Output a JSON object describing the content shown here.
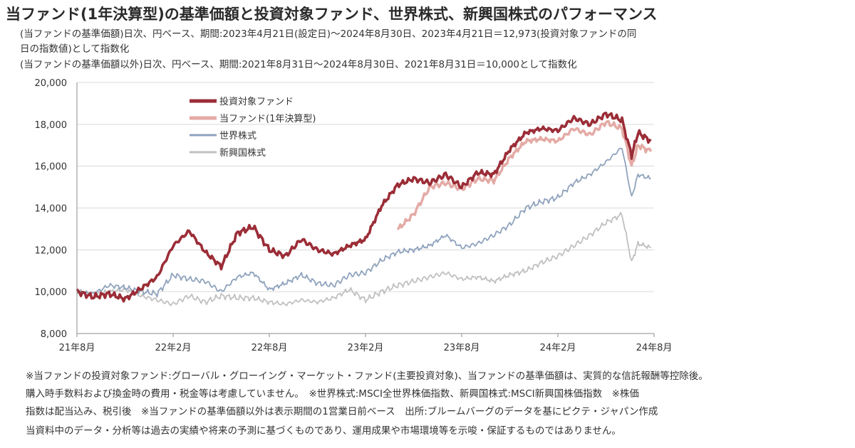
{
  "title": "当ファンド(1年決算型)の基準価額と投資対象ファンド、世界株式、新興国株式のパフォーマンス",
  "subtitle_lines": [
    "(当ファンドの基準価額)日次、円ベース、期間:2023年4月21日(設定日)～2024年8月30日、2023年4月21日＝12,973(投資対象ファンドの同",
    "日の指数値)として指数化",
    "(当ファンドの基準価額以外)日次、円ベース、期間:2021年8月31日～2024年8月30日、2021年8月31日＝10,000として指数化"
  ],
  "notes": [
    "※当ファンドの投資対象ファンド:グローバル・グローイング・マーケット・ファンド(主要投資対象)、当ファンドの基準価額は、実質的な信託報酬等控除後。",
    "購入時手数料および換金時の費用・税金等は考慮していません。　※世界株式:MSCI全世界株価指数、新興国株式:MSCI新興国株価指数　※株価",
    "指数は配当込み、税引後　※当ファンドの基準価額以外は表示期間の1営業日前ベース　出所:ブルームバーグのデータを基にピクテ・ジャパン作成",
    "当資料中のデータ・分析等は過去の実績や将来の予測に基づくものであり、運用成果や市場環境等を示唆・保証するものではありません。"
  ],
  "chart_data": {
    "type": "line",
    "x_ticks": [
      "21年8月",
      "22年2月",
      "22年8月",
      "23年2月",
      "23年8月",
      "24年2月",
      "24年8月"
    ],
    "y_ticks": [
      "8,000",
      "10,000",
      "12,000",
      "14,000",
      "16,000",
      "18,000",
      "20,000"
    ],
    "ylim": [
      8000,
      20000
    ],
    "x_range_months": [
      0,
      36
    ],
    "grid": "horizontal",
    "legend_position": "top-left",
    "series": [
      {
        "name": "投資対象ファンド",
        "color": "#9b2d37",
        "points": [
          [
            0,
            10000
          ],
          [
            1,
            9750
          ],
          [
            2,
            9900
          ],
          [
            3,
            9650
          ],
          [
            4,
            10150
          ],
          [
            5,
            10700
          ],
          [
            6,
            12200
          ],
          [
            7,
            12900
          ],
          [
            8,
            11900
          ],
          [
            9,
            11200
          ],
          [
            10,
            12800
          ],
          [
            11,
            13100
          ],
          [
            12,
            12000
          ],
          [
            13,
            11700
          ],
          [
            14,
            12500
          ],
          [
            15,
            12000
          ],
          [
            16,
            11800
          ],
          [
            17,
            12200
          ],
          [
            18,
            12500
          ],
          [
            19,
            14100
          ],
          [
            20,
            15100
          ],
          [
            21,
            15400
          ],
          [
            22,
            15200
          ],
          [
            23,
            15600
          ],
          [
            24,
            15000
          ],
          [
            25,
            15700
          ],
          [
            26,
            15600
          ],
          [
            27,
            16800
          ],
          [
            28,
            17600
          ],
          [
            29,
            17800
          ],
          [
            30,
            17700
          ],
          [
            31,
            18300
          ],
          [
            32,
            18000
          ],
          [
            33,
            18500
          ],
          [
            34,
            18200
          ],
          [
            34.6,
            16500
          ],
          [
            35,
            17600
          ],
          [
            35.8,
            17200
          ]
        ]
      },
      {
        "name": "当ファンド(1年決算型)",
        "color": "#e4aaa5",
        "points": [
          [
            20,
            12973
          ],
          [
            21,
            13700
          ],
          [
            22,
            15000
          ],
          [
            23,
            15200
          ],
          [
            24,
            14900
          ],
          [
            25,
            15400
          ],
          [
            26,
            15300
          ],
          [
            27,
            16400
          ],
          [
            28,
            17200
          ],
          [
            29,
            17300
          ],
          [
            30,
            17200
          ],
          [
            31,
            17800
          ],
          [
            32,
            17500
          ],
          [
            33,
            18100
          ],
          [
            34,
            17800
          ],
          [
            34.6,
            16000
          ],
          [
            35,
            17000
          ],
          [
            35.8,
            16700
          ]
        ]
      },
      {
        "name": "世界株式",
        "color": "#8fa3bd",
        "points": [
          [
            0,
            10000
          ],
          [
            1,
            9900
          ],
          [
            2,
            10300
          ],
          [
            3,
            10200
          ],
          [
            4,
            10000
          ],
          [
            5,
            9900
          ],
          [
            6,
            10800
          ],
          [
            7,
            10600
          ],
          [
            8,
            10500
          ],
          [
            9,
            10000
          ],
          [
            10,
            10700
          ],
          [
            11,
            10900
          ],
          [
            12,
            10100
          ],
          [
            13,
            10400
          ],
          [
            14,
            10800
          ],
          [
            15,
            10400
          ],
          [
            16,
            10300
          ],
          [
            17,
            10800
          ],
          [
            18,
            10900
          ],
          [
            19,
            11500
          ],
          [
            20,
            11900
          ],
          [
            21,
            12000
          ],
          [
            22,
            12200
          ],
          [
            23,
            12700
          ],
          [
            24,
            12100
          ],
          [
            25,
            12300
          ],
          [
            26,
            12700
          ],
          [
            27,
            13200
          ],
          [
            28,
            14000
          ],
          [
            29,
            14300
          ],
          [
            30,
            14500
          ],
          [
            31,
            15200
          ],
          [
            32,
            15600
          ],
          [
            33,
            16200
          ],
          [
            34,
            16900
          ],
          [
            34.6,
            14500
          ],
          [
            35,
            15600
          ],
          [
            35.8,
            15400
          ]
        ]
      },
      {
        "name": "新興国株式",
        "color": "#c0c0c0",
        "points": [
          [
            0,
            10000
          ],
          [
            1,
            9900
          ],
          [
            2,
            10000
          ],
          [
            3,
            10100
          ],
          [
            4,
            9800
          ],
          [
            5,
            9600
          ],
          [
            6,
            9400
          ],
          [
            7,
            9800
          ],
          [
            8,
            9500
          ],
          [
            9,
            9800
          ],
          [
            10,
            9700
          ],
          [
            11,
            9700
          ],
          [
            12,
            9500
          ],
          [
            13,
            9400
          ],
          [
            14,
            9600
          ],
          [
            15,
            9500
          ],
          [
            16,
            9700
          ],
          [
            17,
            10100
          ],
          [
            18,
            9600
          ],
          [
            19,
            10000
          ],
          [
            20,
            10300
          ],
          [
            21,
            10500
          ],
          [
            22,
            10700
          ],
          [
            23,
            10900
          ],
          [
            24,
            10600
          ],
          [
            25,
            10700
          ],
          [
            26,
            10500
          ],
          [
            27,
            10800
          ],
          [
            28,
            11000
          ],
          [
            29,
            11400
          ],
          [
            30,
            11700
          ],
          [
            31,
            12200
          ],
          [
            32,
            12700
          ],
          [
            33,
            13300
          ],
          [
            34,
            13700
          ],
          [
            34.6,
            11400
          ],
          [
            35,
            12300
          ],
          [
            35.8,
            12100
          ]
        ]
      }
    ]
  }
}
